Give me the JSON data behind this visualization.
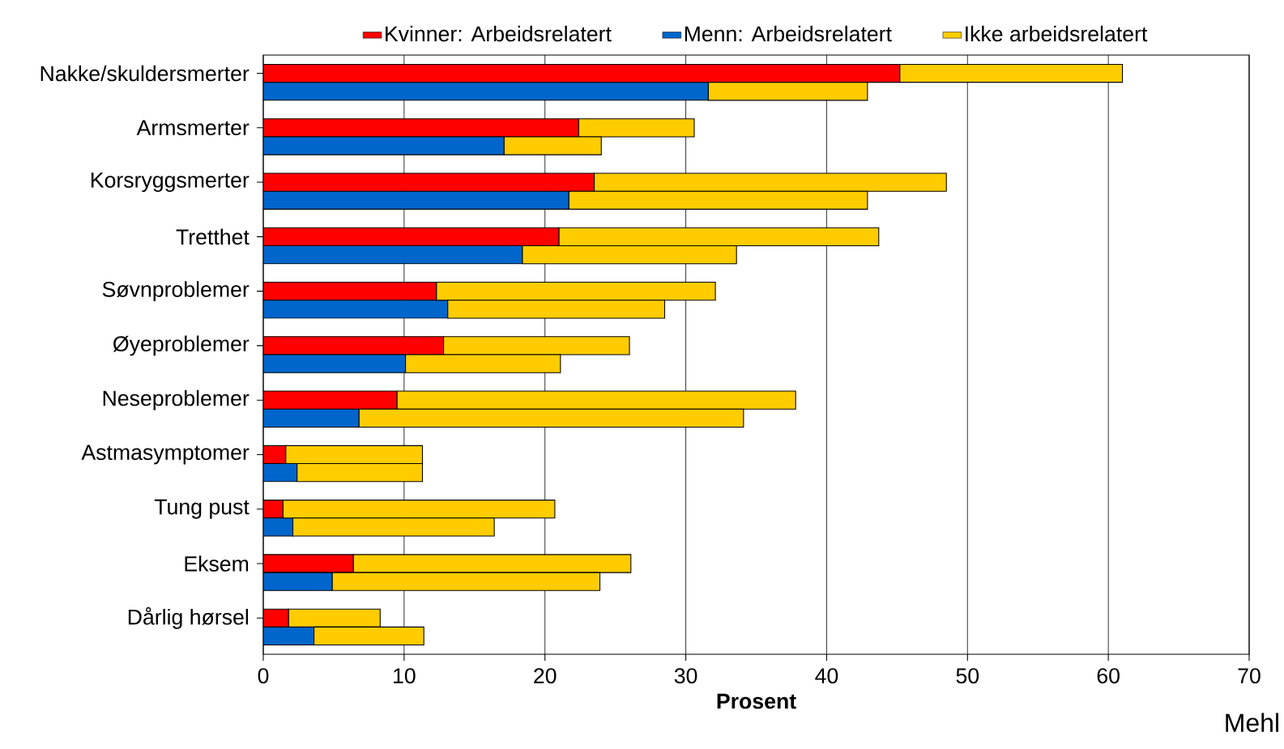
{
  "chart_data": {
    "type": "bar",
    "orientation": "horizontal",
    "stacked": true,
    "xlabel": "Prosent",
    "categories": [
      "Nakke/skuldersmerter",
      null,
      "Armsmerter",
      null,
      "Korsryggsmerter",
      null,
      "Tretthet",
      null,
      "Søvnproblemer",
      null,
      "Øyeproblemer",
      null,
      "Neseproblemer",
      null,
      "Astmasymptomer",
      null,
      "Tung pust",
      null,
      "Eksem",
      null,
      "Dårlig hørsel",
      null
    ],
    "series": [
      {
        "name": "Kvinner: Arbeidsrelatert",
        "color": "#ff0000",
        "values": [
          45.2,
          null,
          22.4,
          null,
          23.5,
          null,
          21.0,
          null,
          12.3,
          null,
          12.8,
          null,
          9.5,
          null,
          1.6,
          null,
          1.4,
          null,
          6.4,
          null,
          1.8,
          null
        ]
      },
      {
        "name": "Menn: Arbeidsrelatert",
        "color": "#0066cc",
        "values": [
          null,
          31.6,
          null,
          17.1,
          null,
          21.7,
          null,
          18.4,
          null,
          13.1,
          null,
          10.1,
          null,
          6.8,
          null,
          2.4,
          null,
          2.1,
          null,
          4.9,
          null,
          3.6
        ]
      },
      {
        "name": "Ikke arbeidsrelatert",
        "color": "#ffcc00",
        "values": [
          15.8,
          11.3,
          8.2,
          6.9,
          25.0,
          21.2,
          22.7,
          15.2,
          19.8,
          15.4,
          13.2,
          11.0,
          28.3,
          27.3,
          9.7,
          8.9,
          19.3,
          14.3,
          19.7,
          19.0,
          6.5,
          7.8
        ]
      }
    ],
    "xlim": [
      0,
      70
    ],
    "xticks": [
      0,
      10,
      20,
      30,
      40,
      50,
      60,
      70
    ],
    "grid": "x",
    "legend": "top",
    "annotations": [
      "Mehl"
    ]
  }
}
